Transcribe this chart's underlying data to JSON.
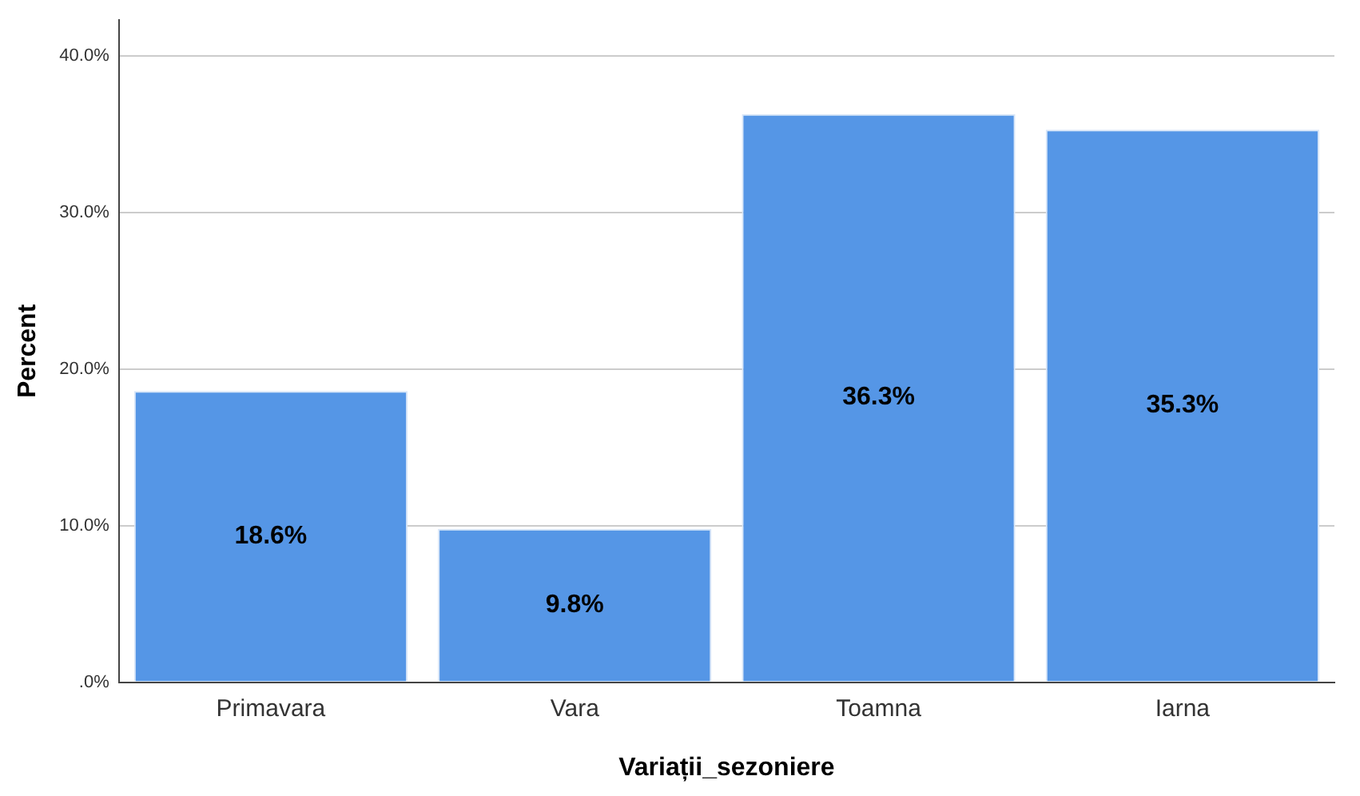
{
  "chart_data": {
    "type": "bar",
    "xlabel": "Variații_sezoniere",
    "ylabel": "Percent",
    "categories": [
      "Primavara",
      "Vara",
      "Toamna",
      "Iarna"
    ],
    "values": [
      18.6,
      9.8,
      36.3,
      35.3
    ],
    "value_labels": [
      "18.6%",
      "9.8%",
      "36.3%",
      "35.3%"
    ],
    "color": "#5596e6",
    "ylim": [
      0,
      42.3
    ],
    "yticks": [
      {
        "value": 0,
        "label": ".0%"
      },
      {
        "value": 10,
        "label": "10.0%"
      },
      {
        "value": 20,
        "label": "20.0%"
      },
      {
        "value": 30,
        "label": "30.0%"
      },
      {
        "value": 40,
        "label": "40.0%"
      }
    ],
    "grid": "y",
    "legend": false
  }
}
